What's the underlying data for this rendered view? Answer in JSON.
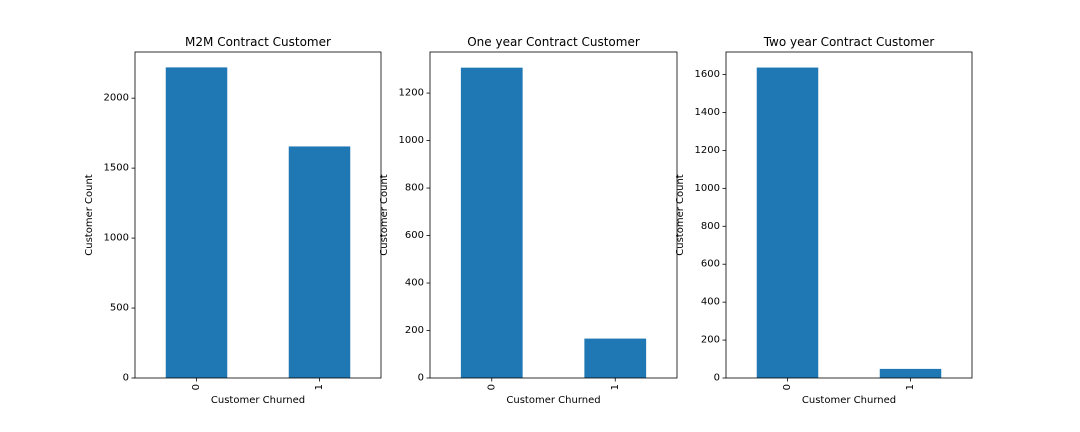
{
  "chart_data": [
    {
      "type": "bar",
      "title": "M2M Contract Customer",
      "xlabel": "Customer Churned",
      "ylabel": "Customer Count",
      "categories": [
        "0",
        "1"
      ],
      "values": [
        2220,
        1655
      ],
      "ylim": [
        0,
        2330
      ],
      "yticks": [
        0,
        500,
        1000,
        1500,
        2000
      ],
      "color": "#1f77b4",
      "grid": false
    },
    {
      "type": "bar",
      "title": "One year Contract Customer",
      "xlabel": "Customer Churned",
      "ylabel": "Customer Count",
      "categories": [
        "0",
        "1"
      ],
      "values": [
        1307,
        166
      ],
      "ylim": [
        0,
        1373
      ],
      "yticks": [
        0,
        200,
        400,
        600,
        800,
        1000,
        1200
      ],
      "color": "#1f77b4",
      "grid": false
    },
    {
      "type": "bar",
      "title": "Two year Contract Customer",
      "xlabel": "Customer Churned",
      "ylabel": "Customer Count",
      "categories": [
        "0",
        "1"
      ],
      "values": [
        1637,
        48
      ],
      "ylim": [
        0,
        1719
      ],
      "yticks": [
        0,
        200,
        400,
        600,
        800,
        1000,
        1200,
        1400,
        1600
      ],
      "color": "#1f77b4",
      "grid": false
    }
  ]
}
